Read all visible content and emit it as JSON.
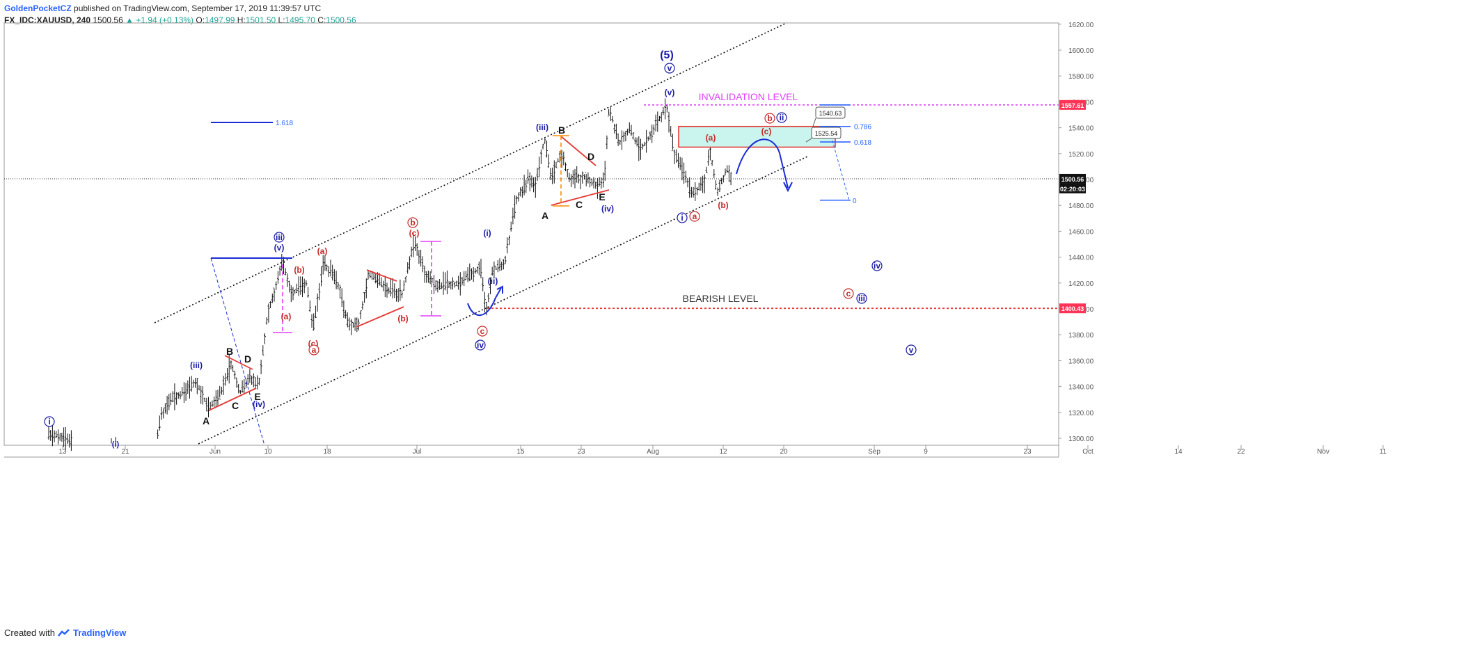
{
  "header": {
    "author": "GoldenPocketCZ",
    "published": "published on TradingView.com, September 17, 2019 11:39:57 UTC",
    "symbol": "FX_IDC:XAUUSD, 240",
    "last": "1500.56",
    "change": "▲ +1.94 (+0.13%)",
    "o_label": "O:",
    "o_val": "1497.99",
    "h_label": "H:",
    "h_val": "1501.50",
    "l_label": "L:",
    "l_val": "1495.70",
    "c_label": "C:",
    "c_val": "1500.56"
  },
  "footer": {
    "created_with": "Created with",
    "brand": "TradingView"
  },
  "colors": {
    "wave_blue": "#1a1aa8",
    "correction_red": "#c62828",
    "magenta": "#e040fb",
    "price_tag": "#ff3355",
    "zone_fill": "#c9f5ee",
    "candle": "#111111"
  },
  "chart_data": {
    "type": "candlestick",
    "ylim": [
      1293,
      1623
    ],
    "y_ticks": [
      "1620.00",
      "1600.00",
      "1580.00",
      "1560.00",
      "1540.00",
      "1520.00",
      "1500.00",
      "1480.00",
      "1460.00",
      "1440.00",
      "1420.00",
      "1400.00",
      "1380.00",
      "1360.00",
      "1340.00",
      "1320.00",
      "1300.00"
    ],
    "x_ticks": [
      "13",
      "21",
      "Jun",
      "10",
      "18",
      "Jul",
      "15",
      "23",
      "Aug",
      "12",
      "20",
      "Sep",
      "9",
      "23",
      "Oct",
      "14",
      "22",
      "Nov",
      "11"
    ],
    "price_tags": [
      {
        "label": "1557.61",
        "value": 1557.61,
        "kind": "invalidation"
      },
      {
        "label": "1500.56",
        "value": 1500.56,
        "kind": "last"
      },
      {
        "label": "02:20:03",
        "value": 1493,
        "kind": "countdown"
      },
      {
        "label": "1400.43",
        "value": 1400.43,
        "kind": "bearish"
      }
    ],
    "levels": [
      {
        "label": "INVALIDATION LEVEL",
        "value": 1557.61
      },
      {
        "label": "BEARISH LEVEL",
        "value": 1400.43
      }
    ],
    "fib": [
      {
        "label": "1.618"
      },
      {
        "label": "0.786"
      },
      {
        "label": "0.618"
      },
      {
        "label": "0"
      }
    ],
    "callouts": [
      "1540.63",
      "1525.54"
    ],
    "wave_labels": {
      "blue": [
        "i",
        "(i)",
        "(iii)",
        "(iv)",
        "iii",
        "(v)",
        "(i)",
        "(ii)",
        "iv",
        "(iii)",
        "(iv)",
        "(v)",
        "v",
        "(5)",
        "i",
        "ii",
        "iv",
        "iii",
        "v"
      ],
      "red": [
        "(a)",
        "(b)",
        "(a)",
        "(c)",
        "a",
        "b",
        "(c)",
        "(b)",
        "c",
        "(a)",
        "(c)",
        "b",
        "(b)",
        "a",
        "c"
      ],
      "black": [
        "A",
        "B",
        "C",
        "D",
        "E",
        "A",
        "B",
        "C",
        "D",
        "E"
      ]
    }
  }
}
